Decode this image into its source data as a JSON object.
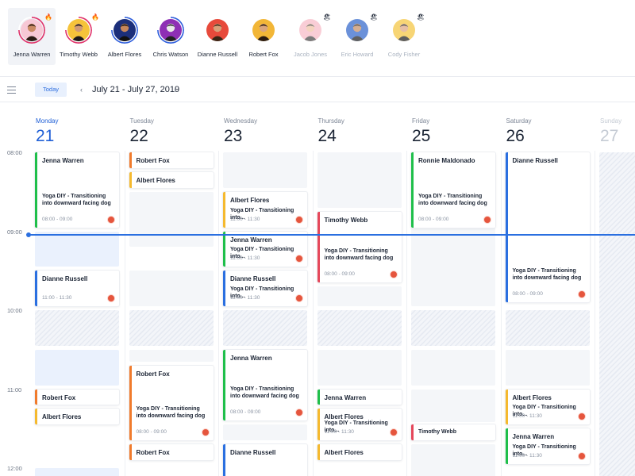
{
  "trainers": [
    {
      "name": "Jenna Warren",
      "active": true,
      "disabled": false,
      "badge": "🔥",
      "ring": "#e0346b",
      "skin": "#c98a63",
      "hair": "#2b1c14",
      "bg": "#f7c8d5"
    },
    {
      "name": "Timothy Webb",
      "active": false,
      "disabled": false,
      "badge": "🔥",
      "ring": "#e0346b",
      "skin": "#d19a74",
      "hair": "#1d1a1a",
      "bg": "#f6c33a"
    },
    {
      "name": "Albert Flores",
      "active": false,
      "disabled": false,
      "badge": "",
      "ring": "#2f5fdc",
      "skin": "#c6865b",
      "hair": "#111111",
      "bg": "#1c2f7a"
    },
    {
      "name": "Chris Watson",
      "active": false,
      "disabled": false,
      "badge": "",
      "ring": "#2f5fdc",
      "skin": "#e9e9e9",
      "hair": "#222222",
      "bg": "#8e2fb5"
    },
    {
      "name": "Dianne Russell",
      "active": false,
      "disabled": false,
      "badge": "",
      "ring": "#ffffff",
      "skin": "#d8a079",
      "hair": "#3a2515",
      "bg": "#e74a3b"
    },
    {
      "name": "Robert Fox",
      "active": false,
      "disabled": false,
      "badge": "",
      "ring": "#ffffff",
      "skin": "#d9a57e",
      "hair": "#2a1a10",
      "bg": "#f2b637"
    },
    {
      "name": "Jacob Jones",
      "active": false,
      "disabled": true,
      "badge": "🏖",
      "ring": "#ffffff",
      "skin": "#f0c1a4",
      "hair": "#444444",
      "bg": "#f7b9c6"
    },
    {
      "name": "Eric Howard",
      "active": false,
      "disabled": true,
      "badge": "🏖",
      "ring": "#ffffff",
      "skin": "#c58d63",
      "hair": "#1d1d1d",
      "bg": "#2d63c9"
    },
    {
      "name": "Cody Fisher",
      "active": false,
      "disabled": true,
      "badge": "🏖",
      "ring": "#ffffff",
      "skin": "#dca47f",
      "hair": "#1b1b1b",
      "bg": "#f5c43b"
    }
  ],
  "toolbar": {
    "today_label": "Today",
    "prev_glyph": "‹",
    "next_glyph": "›",
    "date_range": "July 21 - July 27, 2019"
  },
  "days": [
    {
      "dow": "Monday",
      "num": "21",
      "state": "today"
    },
    {
      "dow": "Tuesday",
      "num": "22",
      "state": "normal"
    },
    {
      "dow": "Wednesday",
      "num": "23",
      "state": "normal"
    },
    {
      "dow": "Thursday",
      "num": "24",
      "state": "normal"
    },
    {
      "dow": "Friday",
      "num": "25",
      "state": "normal"
    },
    {
      "dow": "Saturday",
      "num": "26",
      "state": "normal"
    },
    {
      "dow": "Sunday",
      "num": "27",
      "state": "faded"
    }
  ],
  "times": [
    "08:00",
    "09:00",
    "10:00",
    "11:00",
    "12:00"
  ],
  "colors": {
    "green": "#1fbf4a",
    "orange": "#f07b2c",
    "yellow": "#f5b92e",
    "blue": "#2a6fe0",
    "red": "#e5475a"
  },
  "slots": [
    {
      "day": 0,
      "start": 9.0,
      "end": 9.45,
      "style": "blue"
    },
    {
      "day": 0,
      "start": 10.0,
      "end": 10.45,
      "style": "hatch"
    },
    {
      "day": 0,
      "start": 10.5,
      "end": 10.95,
      "style": "blue"
    },
    {
      "day": 0,
      "start": 12.0,
      "end": 12.2,
      "style": "blue"
    },
    {
      "day": 1,
      "start": 8.5,
      "end": 9.2,
      "style": "plain"
    },
    {
      "day": 1,
      "start": 9.5,
      "end": 9.95,
      "style": "plain"
    },
    {
      "day": 1,
      "start": 10.0,
      "end": 10.45,
      "style": "hatch"
    },
    {
      "day": 1,
      "start": 10.5,
      "end": 10.65,
      "style": "plain"
    },
    {
      "day": 2,
      "start": 8.0,
      "end": 8.45,
      "style": "plain"
    },
    {
      "day": 2,
      "start": 10.0,
      "end": 10.45,
      "style": "hatch"
    },
    {
      "day": 2,
      "start": 11.45,
      "end": 11.65,
      "style": "plain"
    },
    {
      "day": 3,
      "start": 8.0,
      "end": 8.7,
      "style": "plain"
    },
    {
      "day": 3,
      "start": 9.7,
      "end": 9.95,
      "style": "plain"
    },
    {
      "day": 3,
      "start": 10.0,
      "end": 10.45,
      "style": "hatch"
    },
    {
      "day": 3,
      "start": 10.5,
      "end": 10.95,
      "style": "plain"
    },
    {
      "day": 4,
      "start": 8.0,
      "end": 8.45,
      "style": "hatch"
    },
    {
      "day": 4,
      "start": 8.5,
      "end": 9.95,
      "style": "plain"
    },
    {
      "day": 4,
      "start": 10.0,
      "end": 10.45,
      "style": "hatch"
    },
    {
      "day": 4,
      "start": 10.5,
      "end": 10.95,
      "style": "plain"
    },
    {
      "day": 4,
      "start": 11.0,
      "end": 11.42,
      "style": "plain"
    },
    {
      "day": 4,
      "start": 11.7,
      "end": 12.2,
      "style": "plain"
    },
    {
      "day": 5,
      "start": 10.0,
      "end": 10.45,
      "style": "hatch"
    },
    {
      "day": 5,
      "start": 10.5,
      "end": 10.95,
      "style": "plain"
    },
    {
      "day": 6,
      "start": 8.0,
      "end": 12.2,
      "style": "hatch"
    }
  ],
  "events": [
    {
      "day": 0,
      "start": 8.0,
      "end": 8.95,
      "color": "green",
      "name": "Jenna Warren",
      "cls": "Yoga DIY - Transitioning into downward facing dog",
      "time": "08:00 - 09:00"
    },
    {
      "day": 0,
      "start": 9.5,
      "end": 9.95,
      "color": "blue",
      "name": "Dianne Russell",
      "cls": "",
      "time": "11:00 - 11:30"
    },
    {
      "day": 0,
      "start": 11.0,
      "end": 11.2,
      "color": "orange",
      "name": "Robert Fox",
      "cls": "",
      "time": ""
    },
    {
      "day": 0,
      "start": 11.25,
      "end": 11.45,
      "color": "yellow",
      "name": "Albert Flores",
      "cls": "",
      "time": ""
    },
    {
      "day": 1,
      "start": 8.0,
      "end": 8.2,
      "color": "orange",
      "name": "Robert Fox",
      "cls": "",
      "time": ""
    },
    {
      "day": 1,
      "start": 8.25,
      "end": 8.45,
      "color": "yellow",
      "name": "Albert Flores",
      "cls": "",
      "time": ""
    },
    {
      "day": 1,
      "start": 10.7,
      "end": 11.65,
      "color": "orange",
      "name": "Robert Fox",
      "cls": "Yoga DIY - Transitioning into downward facing dog",
      "time": "08:00 - 09:00"
    },
    {
      "day": 1,
      "start": 11.7,
      "end": 11.9,
      "color": "orange",
      "name": "Robert Fox",
      "cls": "",
      "time": ""
    },
    {
      "day": 2,
      "start": 8.5,
      "end": 8.95,
      "color": "yellow",
      "name": "Albert Flores",
      "cls": "Yoga DIY - Transitioning into...",
      "time": "11:00 - 11:30"
    },
    {
      "day": 2,
      "start": 9.0,
      "end": 9.45,
      "color": "green",
      "name": "Jenna Warren",
      "cls": "Yoga DIY - Transitioning into...",
      "time": "11:00 - 11:30"
    },
    {
      "day": 2,
      "start": 9.5,
      "end": 9.95,
      "color": "blue",
      "name": "Dianne Russell",
      "cls": "Yoga DIY - Transitioning into...",
      "time": "11:00 - 11:30"
    },
    {
      "day": 2,
      "start": 10.5,
      "end": 11.4,
      "color": "green",
      "name": "Jenna Warren",
      "cls": "Yoga DIY - Transitioning into downward facing dog",
      "time": "08:00 - 09:00"
    },
    {
      "day": 2,
      "start": 11.7,
      "end": 12.2,
      "color": "blue",
      "name": "Dianne Russell",
      "cls": "",
      "time": ""
    },
    {
      "day": 3,
      "start": 8.75,
      "end": 9.65,
      "color": "red",
      "name": "Timothy Webb",
      "cls": "Yoga DIY - Transitioning into downward facing dog",
      "time": "08:00 - 09:00"
    },
    {
      "day": 3,
      "start": 11.0,
      "end": 11.2,
      "color": "green",
      "name": "Jenna Warren",
      "cls": "",
      "time": ""
    },
    {
      "day": 3,
      "start": 11.25,
      "end": 11.65,
      "color": "yellow",
      "name": "Albert Flores",
      "cls": "Yoga DIY - Transitioning into...",
      "time": "11:00 - 11:30"
    },
    {
      "day": 3,
      "start": 11.7,
      "end": 11.9,
      "color": "yellow",
      "name": "Albert Flores",
      "cls": "",
      "time": ""
    },
    {
      "day": 4,
      "start": 8.0,
      "end": 8.95,
      "color": "green",
      "name": "Ronnie Maldonado",
      "cls": "Yoga DIY - Transitioning into downward facing dog",
      "time": "08:00 - 09:00"
    },
    {
      "day": 4,
      "start": 11.45,
      "end": 11.65,
      "color": "red",
      "name": "Timothy Webb",
      "cls": "",
      "time": ""
    },
    {
      "day": 5,
      "start": 8.0,
      "end": 9.9,
      "color": "blue",
      "name": "Dianne Russell",
      "cls": "Yoga DIY - Transitioning into downward facing dog",
      "time": "08:00 - 09:00"
    },
    {
      "day": 5,
      "start": 11.0,
      "end": 11.45,
      "color": "yellow",
      "name": "Albert Flores",
      "cls": "Yoga DIY - Transitioning into...",
      "time": "11:00 - 11:30"
    },
    {
      "day": 5,
      "start": 11.5,
      "end": 11.95,
      "color": "green",
      "name": "Jenna Warren",
      "cls": "Yoga DIY - Transitioning into...",
      "time": "11:00 - 11:30"
    }
  ]
}
